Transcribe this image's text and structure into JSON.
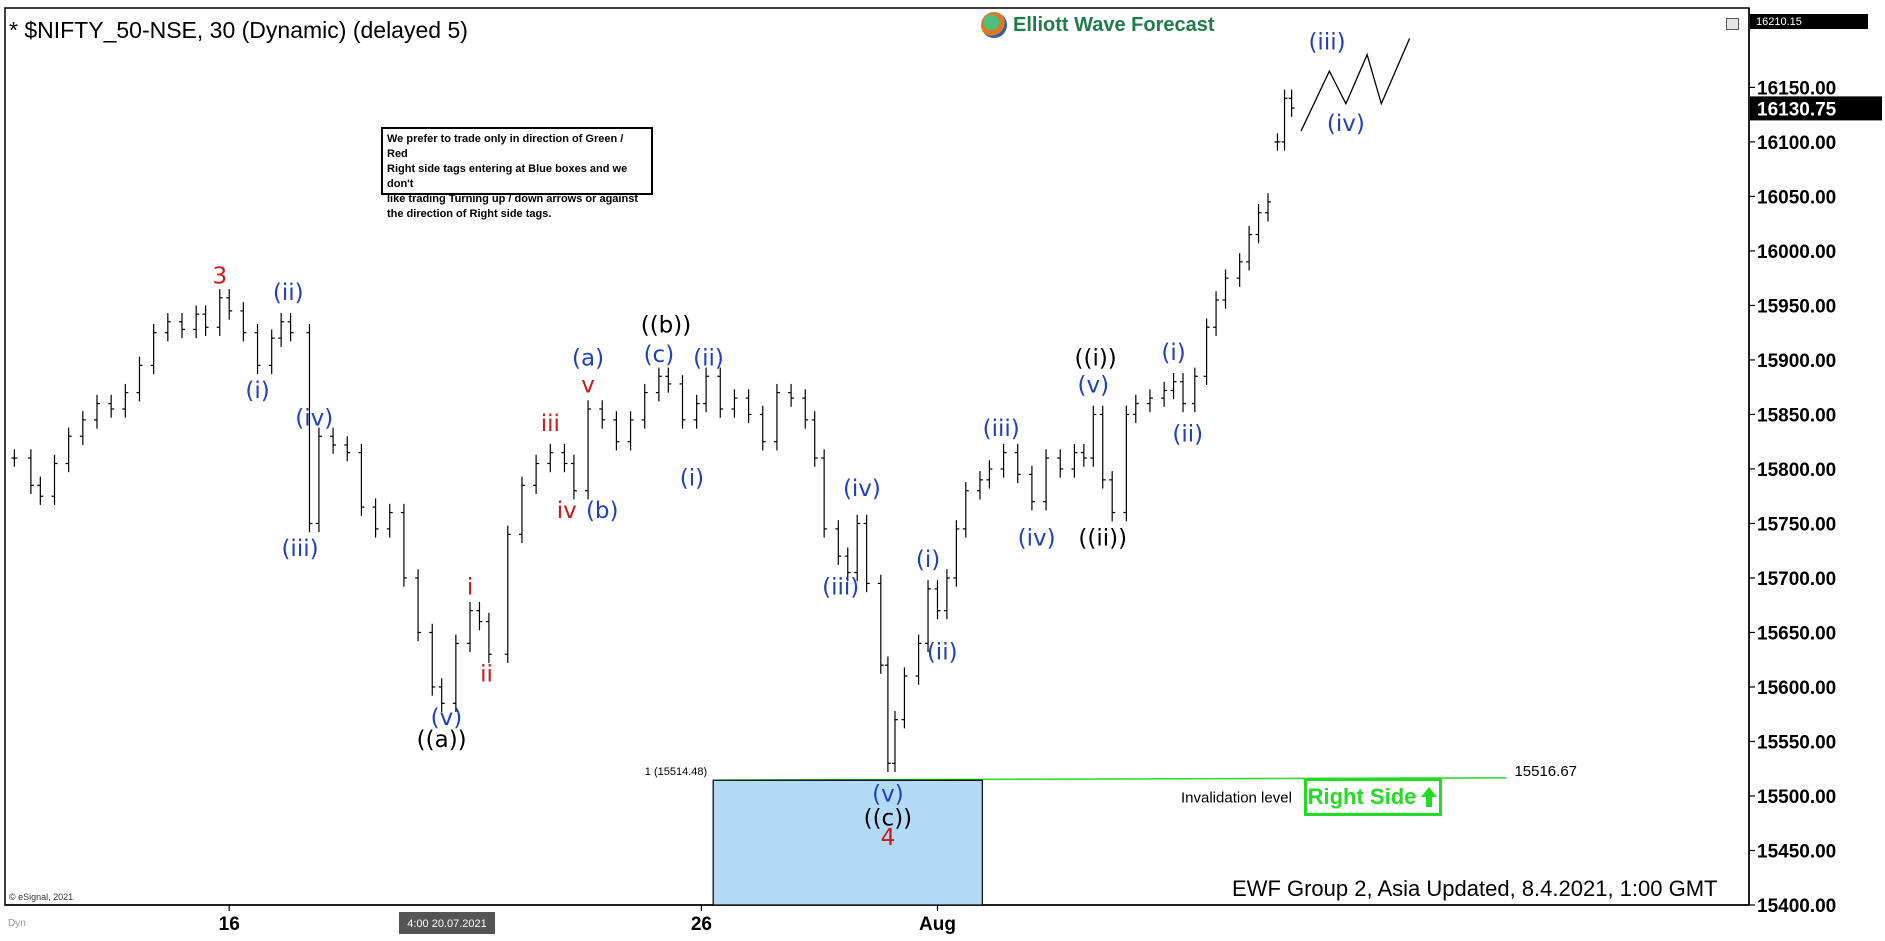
{
  "header": {
    "title": "* $NIFTY_50-NSE, 30 (Dynamic) (delayed 5)",
    "brand": "Elliott Wave Forecast",
    "brand_icon": "globe-logo-icon"
  },
  "note": {
    "lines": [
      "We prefer to trade only in direction of Green / Red",
      "Right side tags entering at Blue boxes and we don't",
      "like trading Turning up / down arrows or against",
      "the direction of Right side tags."
    ]
  },
  "footer": {
    "update_text": "EWF Group 2, Asia Updated, 8.4.2021, 1:00 GMT",
    "copyright": "© eSignal, 2021",
    "dyn_label": "Dyn",
    "cursor_time": "4:00 20.07.2021"
  },
  "right_side_tag": {
    "label": "Right Side",
    "icon": "arrow-up-icon",
    "color": "#22dd22"
  },
  "invalidation": {
    "label": "Invalidation level",
    "value_label": "15516.67",
    "fib_label": "1 (15514.48)"
  },
  "colors": {
    "blue": "#1f3fbf",
    "red": "#d01818",
    "black": "#000000",
    "box": "#b3dbf8",
    "green_line": "#22dd22"
  },
  "chart_data": {
    "type": "bar",
    "title": "* $NIFTY_50-NSE, 30 (Dynamic) (delayed 5)",
    "ylim": [
      15400,
      16210
    ],
    "y_ticks": [
      15400,
      15450,
      15500,
      15550,
      15600,
      15650,
      15700,
      15750,
      15800,
      15850,
      15900,
      15950,
      16000,
      16050,
      16100,
      16150
    ],
    "y_tick_labels": [
      "15400.00",
      "15450.00",
      "15500.00",
      "15550.00",
      "15600.00",
      "15650.00",
      "15700.00",
      "15750.00",
      "15800.00",
      "15850.00",
      "15900.00",
      "15950.00",
      "16000.00",
      "16050.00",
      "16100.00",
      "16150.00"
    ],
    "x_ticks": [
      "16",
      "26",
      "Aug"
    ],
    "x_tick_positions": [
      16,
      26,
      31
    ],
    "xlim": [
      11.4,
      38.0
    ],
    "last_price": 16130.75,
    "last_price_label": "16130.75",
    "top_price_label": "16210.15",
    "close_series": [
      {
        "x": 11.45,
        "y": 15810
      },
      {
        "x": 11.8,
        "y": 15785
      },
      {
        "x": 12.0,
        "y": 15775
      },
      {
        "x": 12.3,
        "y": 15805
      },
      {
        "x": 12.6,
        "y": 15830
      },
      {
        "x": 12.9,
        "y": 15845
      },
      {
        "x": 13.2,
        "y": 15860
      },
      {
        "x": 13.5,
        "y": 15855
      },
      {
        "x": 13.8,
        "y": 15870
      },
      {
        "x": 14.1,
        "y": 15895
      },
      {
        "x": 14.4,
        "y": 15925
      },
      {
        "x": 14.7,
        "y": 15935
      },
      {
        "x": 15.0,
        "y": 15928
      },
      {
        "x": 15.3,
        "y": 15942
      },
      {
        "x": 15.5,
        "y": 15930
      },
      {
        "x": 15.8,
        "y": 15957
      },
      {
        "x": 16.0,
        "y": 15945
      },
      {
        "x": 16.3,
        "y": 15925
      },
      {
        "x": 16.6,
        "y": 15895
      },
      {
        "x": 16.9,
        "y": 15920
      },
      {
        "x": 17.1,
        "y": 15935
      },
      {
        "x": 17.3,
        "y": 15925
      },
      {
        "x": 17.7,
        "y": 15750
      },
      {
        "x": 17.9,
        "y": 15830
      },
      {
        "x": 18.2,
        "y": 15822
      },
      {
        "x": 18.5,
        "y": 15815
      },
      {
        "x": 18.8,
        "y": 15765
      },
      {
        "x": 19.1,
        "y": 15745
      },
      {
        "x": 19.4,
        "y": 15760
      },
      {
        "x": 19.7,
        "y": 15700
      },
      {
        "x": 20.0,
        "y": 15650
      },
      {
        "x": 20.3,
        "y": 15600
      },
      {
        "x": 20.5,
        "y": 15585
      },
      {
        "x": 20.8,
        "y": 15640
      },
      {
        "x": 21.1,
        "y": 15670
      },
      {
        "x": 21.3,
        "y": 15660
      },
      {
        "x": 21.5,
        "y": 15630
      },
      {
        "x": 21.9,
        "y": 15740
      },
      {
        "x": 22.2,
        "y": 15785
      },
      {
        "x": 22.5,
        "y": 15805
      },
      {
        "x": 22.8,
        "y": 15815
      },
      {
        "x": 23.1,
        "y": 15805
      },
      {
        "x": 23.3,
        "y": 15780
      },
      {
        "x": 23.6,
        "y": 15855
      },
      {
        "x": 23.9,
        "y": 15845
      },
      {
        "x": 24.2,
        "y": 15825
      },
      {
        "x": 24.5,
        "y": 15845
      },
      {
        "x": 24.8,
        "y": 15870
      },
      {
        "x": 25.1,
        "y": 15885
      },
      {
        "x": 25.3,
        "y": 15878
      },
      {
        "x": 25.6,
        "y": 15845
      },
      {
        "x": 25.9,
        "y": 15860
      },
      {
        "x": 26.1,
        "y": 15885
      },
      {
        "x": 26.4,
        "y": 15855
      },
      {
        "x": 26.7,
        "y": 15865
      },
      {
        "x": 27.0,
        "y": 15850
      },
      {
        "x": 27.3,
        "y": 15825
      },
      {
        "x": 27.6,
        "y": 15870
      },
      {
        "x": 27.9,
        "y": 15865
      },
      {
        "x": 28.2,
        "y": 15845
      },
      {
        "x": 28.4,
        "y": 15810
      },
      {
        "x": 28.6,
        "y": 15745
      },
      {
        "x": 28.9,
        "y": 15720
      },
      {
        "x": 29.1,
        "y": 15705
      },
      {
        "x": 29.3,
        "y": 15750
      },
      {
        "x": 29.5,
        "y": 15695
      },
      {
        "x": 29.8,
        "y": 15620
      },
      {
        "x": 29.95,
        "y": 15530
      },
      {
        "x": 30.1,
        "y": 15570
      },
      {
        "x": 30.3,
        "y": 15610
      },
      {
        "x": 30.6,
        "y": 15640
      },
      {
        "x": 30.8,
        "y": 15690
      },
      {
        "x": 31.0,
        "y": 15670
      },
      {
        "x": 31.2,
        "y": 15700
      },
      {
        "x": 31.4,
        "y": 15745
      },
      {
        "x": 31.6,
        "y": 15780
      },
      {
        "x": 31.9,
        "y": 15790
      },
      {
        "x": 32.1,
        "y": 15800
      },
      {
        "x": 32.4,
        "y": 15815
      },
      {
        "x": 32.7,
        "y": 15795
      },
      {
        "x": 33.0,
        "y": 15770
      },
      {
        "x": 33.3,
        "y": 15810
      },
      {
        "x": 33.6,
        "y": 15800
      },
      {
        "x": 33.9,
        "y": 15815
      },
      {
        "x": 34.1,
        "y": 15810
      },
      {
        "x": 34.3,
        "y": 15850
      },
      {
        "x": 34.5,
        "y": 15790
      },
      {
        "x": 34.7,
        "y": 15760
      },
      {
        "x": 35.0,
        "y": 15850
      },
      {
        "x": 35.2,
        "y": 15860
      },
      {
        "x": 35.5,
        "y": 15865
      },
      {
        "x": 35.8,
        "y": 15872
      },
      {
        "x": 36.0,
        "y": 15880
      },
      {
        "x": 36.2,
        "y": 15860
      },
      {
        "x": 36.45,
        "y": 15885
      },
      {
        "x": 36.7,
        "y": 15930
      },
      {
        "x": 36.9,
        "y": 15955
      },
      {
        "x": 37.1,
        "y": 15975
      },
      {
        "x": 37.4,
        "y": 15990
      },
      {
        "x": 37.6,
        "y": 16015
      },
      {
        "x": 37.8,
        "y": 16035
      },
      {
        "x": 38.0,
        "y": 16045
      }
    ],
    "final_series": [
      {
        "x": 38.2,
        "y": 16100
      },
      {
        "x": 38.35,
        "y": 16140
      },
      {
        "x": 38.5,
        "y": 16131
      }
    ],
    "projection": [
      {
        "x": 38.7,
        "y": 16110
      },
      {
        "x": 39.3,
        "y": 16165
      },
      {
        "x": 39.65,
        "y": 16135
      },
      {
        "x": 40.1,
        "y": 16180
      },
      {
        "x": 40.4,
        "y": 16135
      },
      {
        "x": 41.0,
        "y": 16195
      }
    ],
    "blue_box": {
      "x_start": 26.25,
      "x_end": 31.95,
      "y_top": 15514.48,
      "y_bottom": 15400
    },
    "invalidation_line": {
      "x_start": 26.25,
      "x_end": 43.05,
      "y_start": 15514.48,
      "y_end": 15516.67
    },
    "labels": [
      {
        "text": "3",
        "x": 15.8,
        "y": 15970,
        "color": "red"
      },
      {
        "text": "(ii)",
        "x": 17.25,
        "y": 15955,
        "color": "blue"
      },
      {
        "text": "(i)",
        "x": 16.6,
        "y": 15865,
        "color": "blue"
      },
      {
        "text": "(iv)",
        "x": 17.8,
        "y": 15840,
        "color": "blue"
      },
      {
        "text": "(iii)",
        "x": 17.5,
        "y": 15720,
        "color": "blue"
      },
      {
        "text": "i",
        "x": 21.1,
        "y": 15685,
        "color": "red"
      },
      {
        "text": "ii",
        "x": 21.45,
        "y": 15605,
        "color": "red"
      },
      {
        "text": "(v)",
        "x": 20.6,
        "y": 15565,
        "color": "blue"
      },
      {
        "text": "((a))",
        "x": 20.5,
        "y": 15545,
        "color": "black"
      },
      {
        "text": "iii",
        "x": 22.8,
        "y": 15835,
        "color": "red"
      },
      {
        "text": "iv",
        "x": 23.15,
        "y": 15755,
        "color": "red"
      },
      {
        "text": "(b)",
        "x": 23.9,
        "y": 15755,
        "color": "blue"
      },
      {
        "text": "(a)",
        "x": 23.6,
        "y": 15895,
        "color": "blue"
      },
      {
        "text": "v",
        "x": 23.6,
        "y": 15870,
        "color": "red"
      },
      {
        "text": "((b))",
        "x": 25.25,
        "y": 15925,
        "color": "black"
      },
      {
        "text": "(c)",
        "x": 25.1,
        "y": 15898,
        "color": "blue"
      },
      {
        "text": "(ii)",
        "x": 26.15,
        "y": 15895,
        "color": "blue"
      },
      {
        "text": "(i)",
        "x": 25.8,
        "y": 15785,
        "color": "blue"
      },
      {
        "text": "(iv)",
        "x": 29.4,
        "y": 15775,
        "color": "blue"
      },
      {
        "text": "(iii)",
        "x": 28.95,
        "y": 15685,
        "color": "blue"
      },
      {
        "text": "(v)",
        "x": 29.95,
        "y": 15495,
        "color": "blue"
      },
      {
        "text": "((c))",
        "x": 29.95,
        "y": 15473,
        "color": "black"
      },
      {
        "text": "4",
        "x": 29.95,
        "y": 15455,
        "color": "red"
      },
      {
        "text": "(i)",
        "x": 30.8,
        "y": 15710,
        "color": "blue"
      },
      {
        "text": "(ii)",
        "x": 31.1,
        "y": 15625,
        "color": "blue"
      },
      {
        "text": "(iii)",
        "x": 32.35,
        "y": 15830,
        "color": "blue"
      },
      {
        "text": "(iv)",
        "x": 33.1,
        "y": 15730,
        "color": "blue"
      },
      {
        "text": "((i))",
        "x": 34.35,
        "y": 15895,
        "color": "black"
      },
      {
        "text": "(v)",
        "x": 34.3,
        "y": 15870,
        "color": "blue"
      },
      {
        "text": "((ii))",
        "x": 34.5,
        "y": 15730,
        "color": "black"
      },
      {
        "text": "(i)",
        "x": 36.0,
        "y": 15900,
        "color": "blue"
      },
      {
        "text": "(ii)",
        "x": 36.3,
        "y": 15825,
        "color": "blue"
      },
      {
        "text": "(iii)",
        "x": 39.25,
        "y": 16185,
        "color": "blue"
      },
      {
        "text": "(iv)",
        "x": 39.65,
        "y": 16110,
        "color": "blue"
      }
    ]
  }
}
